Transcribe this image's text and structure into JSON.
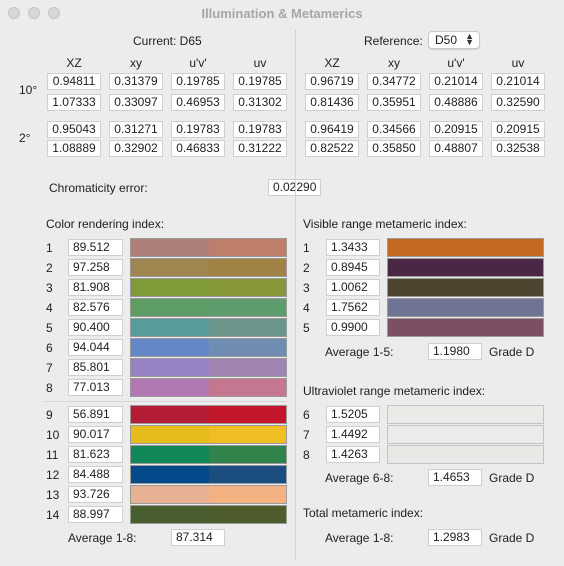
{
  "window": {
    "title": "Illumination & Metamerics"
  },
  "current": {
    "label": "Current: D65",
    "headers": [
      "XZ",
      "xy",
      "u'v'",
      "uv"
    ],
    "rows": [
      [
        "0.94811",
        "0.31379",
        "0.19785",
        "0.19785"
      ],
      [
        "1.07333",
        "0.33097",
        "0.46953",
        "0.31302"
      ],
      [
        "0.95043",
        "0.31271",
        "0.19783",
        "0.19783"
      ],
      [
        "1.08889",
        "0.32902",
        "0.46833",
        "0.31222"
      ]
    ]
  },
  "observers": {
    "ten": "10°",
    "two": "2°"
  },
  "reference": {
    "label": "Reference:",
    "selected": "D50",
    "headers": [
      "XZ",
      "xy",
      "u'v'",
      "uv"
    ],
    "rows": [
      [
        "0.96719",
        "0.34772",
        "0.21014",
        "0.21014"
      ],
      [
        "0.81436",
        "0.35951",
        "0.48886",
        "0.32590"
      ],
      [
        "0.96419",
        "0.34566",
        "0.20915",
        "0.20915"
      ],
      [
        "0.82522",
        "0.35850",
        "0.48807",
        "0.32538"
      ]
    ]
  },
  "chromaticity": {
    "label": "Chromaticity error:",
    "value": "0.02290"
  },
  "cri": {
    "title": "Color rendering index:",
    "items": [
      {
        "num": "1",
        "value": "89.512",
        "c1": "#ae7f78",
        "c2": "#be7f6a"
      },
      {
        "num": "2",
        "value": "97.258",
        "c1": "#9d8650",
        "c2": "#a08344"
      },
      {
        "num": "3",
        "value": "81.908",
        "c1": "#7f9a39",
        "c2": "#879838"
      },
      {
        "num": "4",
        "value": "82.576",
        "c1": "#5c9d63",
        "c2": "#5f9c6d"
      },
      {
        "num": "5",
        "value": "90.400",
        "c1": "#599d9b",
        "c2": "#6b948b"
      },
      {
        "num": "6",
        "value": "94.044",
        "c1": "#6488c7",
        "c2": "#6f8cb3"
      },
      {
        "num": "7",
        "value": "85.801",
        "c1": "#9682c2",
        "c2": "#a084b2"
      },
      {
        "num": "8",
        "value": "77.013",
        "c1": "#b077b0",
        "c2": "#c5778f"
      },
      {
        "num": "9",
        "value": "56.891",
        "c1": "#b41c35",
        "c2": "#c2172a"
      },
      {
        "num": "10",
        "value": "90.017",
        "c1": "#e6bc1c",
        "c2": "#f0bd22"
      },
      {
        "num": "11",
        "value": "81.623",
        "c1": "#0f8756",
        "c2": "#30844b"
      },
      {
        "num": "12",
        "value": "84.488",
        "c1": "#034a8a",
        "c2": "#1b4d7e"
      },
      {
        "num": "13",
        "value": "93.726",
        "c1": "#e9b193",
        "c2": "#f4b283"
      },
      {
        "num": "14",
        "value": "88.997",
        "c1": "#4a5f2f",
        "c2": "#4f5c2b"
      }
    ],
    "average_label": "Average 1-8:",
    "average": "87.314"
  },
  "visible": {
    "title": "Visible range metameric index:",
    "items": [
      {
        "num": "1",
        "value": "1.3433",
        "color": "#c46a20"
      },
      {
        "num": "2",
        "value": "0.8945",
        "color": "#4a2845"
      },
      {
        "num": "3",
        "value": "1.0062",
        "color": "#4d4530"
      },
      {
        "num": "4",
        "value": "1.7562",
        "color": "#6f7394"
      },
      {
        "num": "5",
        "value": "0.9900",
        "color": "#7e4f62"
      }
    ],
    "average_label": "Average 1-5:",
    "average": "1.1980",
    "grade": "Grade D"
  },
  "uv": {
    "title": "Ultraviolet range metameric index:",
    "items": [
      {
        "num": "6",
        "value": "1.5205",
        "color": "#eaeae6"
      },
      {
        "num": "7",
        "value": "1.4492",
        "color": "#eceaea"
      },
      {
        "num": "8",
        "value": "1.4263",
        "color": "#e8e9e4"
      }
    ],
    "average_label": "Average 6-8:",
    "average": "1.4653",
    "grade": "Grade D"
  },
  "total": {
    "title": "Total metameric index:",
    "average_label": "Average 1-8:",
    "average": "1.2983",
    "grade": "Grade D"
  }
}
